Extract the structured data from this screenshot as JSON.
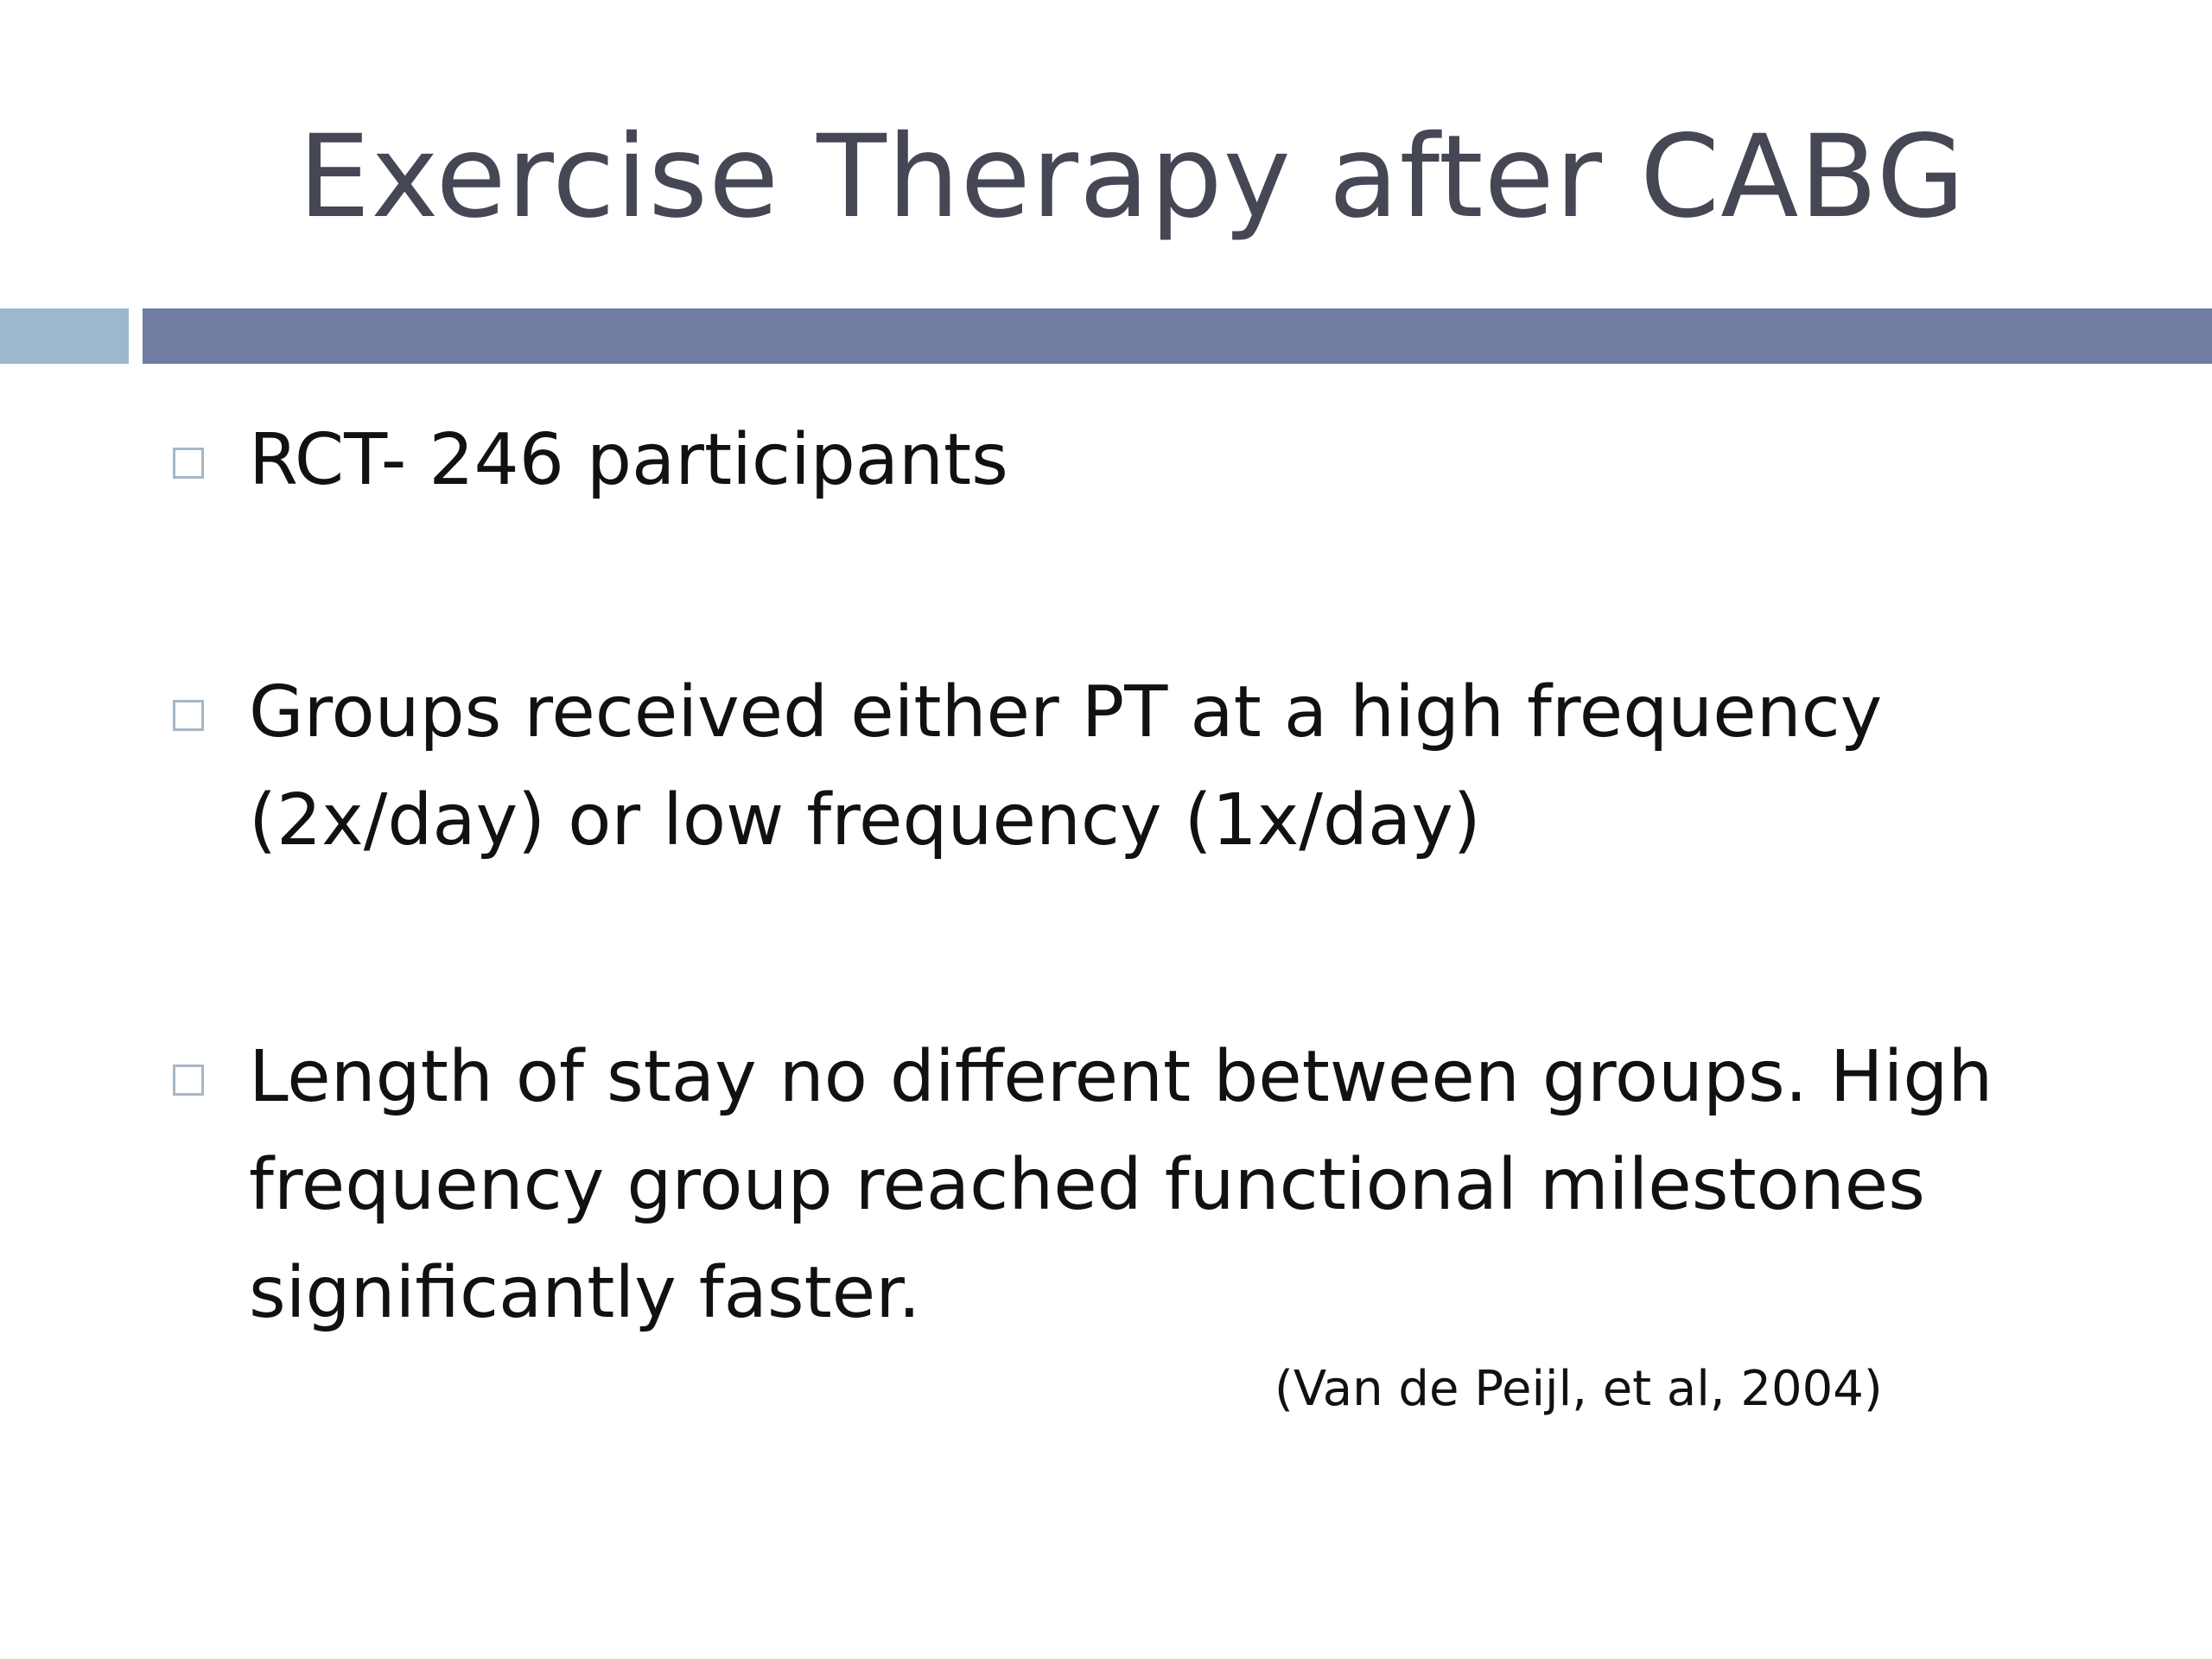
{
  "slide": {
    "title": "Exercise Therapy after CABG",
    "bullets": [
      {
        "lines": [
          "RCT- 246 participants"
        ]
      },
      {
        "lines": [
          "Groups received either PT at a high frequency",
          "(2x/day) or low frequency (1x/day)"
        ]
      },
      {
        "lines": [
          "Length of stay no different between groups. High",
          "frequency group reached functional milestones",
          "significantly faster."
        ]
      }
    ],
    "citation": "(Van de Peijl, et al, 2004)"
  },
  "colors": {
    "title": "#464755",
    "divider_small": "#9bb8cc",
    "divider_large": "#717ca3",
    "bullet_box": "#a7b7c6"
  }
}
